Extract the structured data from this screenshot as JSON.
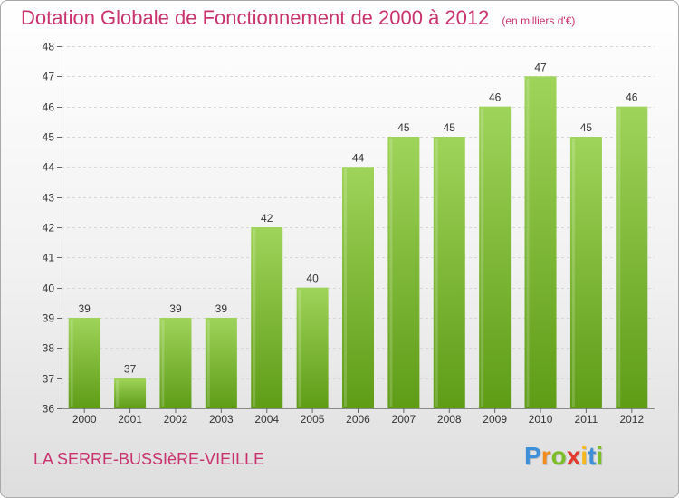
{
  "chart_data": {
    "type": "bar",
    "title": "Dotation Globale de Fonctionnement de 2000 à 2012",
    "subtitle": "(en milliers d'€)",
    "categories": [
      "2000",
      "2001",
      "2002",
      "2003",
      "2004",
      "2005",
      "2006",
      "2007",
      "2008",
      "2009",
      "2010",
      "2011",
      "2012"
    ],
    "values": [
      39,
      37,
      39,
      39,
      42,
      40,
      44,
      45,
      45,
      46,
      47,
      45,
      46
    ],
    "ylim": [
      36,
      48
    ],
    "yticks": [
      36,
      37,
      38,
      39,
      40,
      41,
      42,
      43,
      44,
      45,
      46,
      47,
      48
    ],
    "grid": true,
    "bar_color": "#7fbf2a"
  },
  "footer": {
    "commune": "LA SERRE-BUSSIèRE-VIEILLE",
    "logo_letters": [
      {
        "ch": "P",
        "color": "#3f8fd8"
      },
      {
        "ch": "r",
        "color": "#f08c1e"
      },
      {
        "ch": "o",
        "color": "#7cbd2a"
      },
      {
        "ch": "x",
        "color": "#e23b2e"
      },
      {
        "ch": "i",
        "color": "#f6b81c"
      },
      {
        "ch": "t",
        "color": "#3f8fd8"
      },
      {
        "ch": "i",
        "color": "#7cbd2a"
      }
    ]
  },
  "colors": {
    "title": "#c8326d",
    "bar_top": "#9fd45a",
    "bar_bottom": "#5e9c16"
  }
}
